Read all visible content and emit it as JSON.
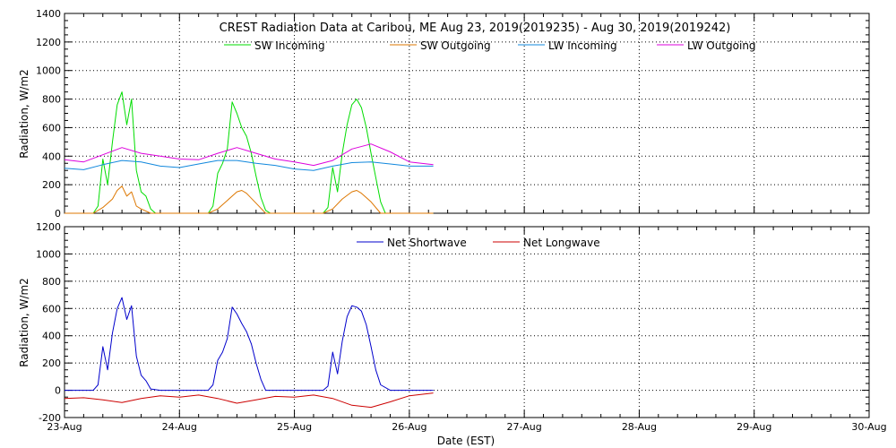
{
  "chart_data": [
    {
      "type": "line",
      "title": "CREST Radiation Data at Caribou, ME   Aug 23, 2019(2019235) - Aug 30, 2019(2019242)",
      "xlabel": "",
      "ylabel": "Radiation, W/m2",
      "ylim": [
        0,
        1400
      ],
      "yticks": [
        0,
        200,
        400,
        600,
        800,
        1000,
        1200,
        1400
      ],
      "xlim": [
        "23-Aug",
        "30-Aug"
      ],
      "grid": true,
      "legend_position": "top",
      "series": [
        {
          "name": "SW Incoming",
          "color": "#00dd00",
          "x": [
            "23-Aug 00:00",
            "23-Aug 06:00",
            "23-Aug 07:00",
            "23-Aug 08:00",
            "23-Aug 09:00",
            "23-Aug 10:00",
            "23-Aug 11:00",
            "23-Aug 12:00",
            "23-Aug 13:00",
            "23-Aug 14:00",
            "23-Aug 15:00",
            "23-Aug 16:00",
            "23-Aug 17:00",
            "23-Aug 18:00",
            "23-Aug 19:00",
            "23-Aug 20:00",
            "24-Aug 06:00",
            "24-Aug 07:00",
            "24-Aug 08:00",
            "24-Aug 09:00",
            "24-Aug 10:00",
            "24-Aug 11:00",
            "24-Aug 12:00",
            "24-Aug 13:00",
            "24-Aug 14:00",
            "24-Aug 15:00",
            "24-Aug 16:00",
            "24-Aug 17:00",
            "24-Aug 18:00",
            "24-Aug 19:00",
            "24-Aug 20:00",
            "25-Aug 06:00",
            "25-Aug 07:00",
            "25-Aug 08:00",
            "25-Aug 09:00",
            "25-Aug 10:00",
            "25-Aug 11:00",
            "25-Aug 12:00",
            "25-Aug 13:00",
            "25-Aug 14:00",
            "25-Aug 15:00",
            "25-Aug 16:00",
            "25-Aug 17:00",
            "25-Aug 18:00",
            "25-Aug 19:00",
            "25-Aug 20:00",
            "26-Aug 00:00",
            "26-Aug 05:00"
          ],
          "values": [
            0,
            0,
            50,
            380,
            200,
            500,
            760,
            850,
            620,
            800,
            300,
            150,
            120,
            30,
            0,
            0,
            0,
            50,
            280,
            350,
            450,
            780,
            700,
            600,
            540,
            420,
            260,
            110,
            20,
            0,
            0,
            0,
            40,
            320,
            150,
            420,
            620,
            760,
            800,
            740,
            600,
            420,
            250,
            80,
            0,
            0,
            0,
            0
          ]
        },
        {
          "name": "SW Outgoing",
          "color": "#dd7700",
          "x": [
            "23-Aug 00:00",
            "23-Aug 06:00",
            "23-Aug 08:00",
            "23-Aug 10:00",
            "23-Aug 11:00",
            "23-Aug 12:00",
            "23-Aug 13:00",
            "23-Aug 14:00",
            "23-Aug 15:00",
            "23-Aug 16:00",
            "23-Aug 18:00",
            "24-Aug 06:00",
            "24-Aug 08:00",
            "24-Aug 10:00",
            "24-Aug 12:00",
            "24-Aug 13:00",
            "24-Aug 14:00",
            "24-Aug 16:00",
            "24-Aug 18:00",
            "25-Aug 06:00",
            "25-Aug 08:00",
            "25-Aug 10:00",
            "25-Aug 12:00",
            "25-Aug 13:00",
            "25-Aug 14:00",
            "25-Aug 16:00",
            "25-Aug 18:00",
            "26-Aug 05:00"
          ],
          "values": [
            0,
            0,
            40,
            100,
            160,
            190,
            120,
            150,
            50,
            30,
            0,
            0,
            30,
            90,
            150,
            160,
            140,
            70,
            0,
            0,
            30,
            100,
            150,
            160,
            140,
            80,
            0,
            0
          ]
        },
        {
          "name": "LW Incoming",
          "color": "#1188dd",
          "x": [
            "23-Aug 00:00",
            "23-Aug 04:00",
            "23-Aug 08:00",
            "23-Aug 12:00",
            "23-Aug 16:00",
            "23-Aug 20:00",
            "24-Aug 00:00",
            "24-Aug 04:00",
            "24-Aug 08:00",
            "24-Aug 12:00",
            "24-Aug 16:00",
            "24-Aug 20:00",
            "25-Aug 00:00",
            "25-Aug 04:00",
            "25-Aug 08:00",
            "25-Aug 12:00",
            "25-Aug 16:00",
            "25-Aug 20:00",
            "26-Aug 00:00",
            "26-Aug 05:00"
          ],
          "values": [
            315,
            305,
            340,
            370,
            360,
            330,
            320,
            345,
            370,
            370,
            350,
            335,
            310,
            300,
            330,
            355,
            360,
            345,
            330,
            330
          ]
        },
        {
          "name": "LW Outgoing",
          "color": "#dd00dd",
          "x": [
            "23-Aug 00:00",
            "23-Aug 04:00",
            "23-Aug 08:00",
            "23-Aug 12:00",
            "23-Aug 16:00",
            "23-Aug 20:00",
            "24-Aug 00:00",
            "24-Aug 04:00",
            "24-Aug 08:00",
            "24-Aug 12:00",
            "24-Aug 16:00",
            "24-Aug 20:00",
            "25-Aug 00:00",
            "25-Aug 04:00",
            "25-Aug 08:00",
            "25-Aug 12:00",
            "25-Aug 16:00",
            "25-Aug 20:00",
            "26-Aug 00:00",
            "26-Aug 05:00"
          ],
          "values": [
            375,
            360,
            410,
            460,
            420,
            400,
            380,
            375,
            420,
            460,
            420,
            380,
            360,
            335,
            370,
            450,
            485,
            430,
            360,
            340
          ]
        }
      ]
    },
    {
      "type": "line",
      "title": "",
      "xlabel": "Date (EST)",
      "ylabel": "Radiation, W/m2",
      "ylim": [
        -200,
        1200
      ],
      "yticks": [
        -200,
        0,
        200,
        400,
        600,
        800,
        1000,
        1200
      ],
      "xlim": [
        "23-Aug",
        "30-Aug"
      ],
      "xticks": [
        "23-Aug",
        "24-Aug",
        "25-Aug",
        "26-Aug",
        "27-Aug",
        "28-Aug",
        "29-Aug",
        "30-Aug"
      ],
      "grid": true,
      "legend_position": "top",
      "series": [
        {
          "name": "Net Shortwave",
          "color": "#0000cc",
          "x": [
            "23-Aug 00:00",
            "23-Aug 06:00",
            "23-Aug 07:00",
            "23-Aug 08:00",
            "23-Aug 09:00",
            "23-Aug 10:00",
            "23-Aug 11:00",
            "23-Aug 12:00",
            "23-Aug 13:00",
            "23-Aug 14:00",
            "23-Aug 15:00",
            "23-Aug 16:00",
            "23-Aug 17:00",
            "23-Aug 18:00",
            "23-Aug 20:00",
            "24-Aug 06:00",
            "24-Aug 07:00",
            "24-Aug 08:00",
            "24-Aug 09:00",
            "24-Aug 10:00",
            "24-Aug 11:00",
            "24-Aug 12:00",
            "24-Aug 13:00",
            "24-Aug 14:00",
            "24-Aug 15:00",
            "24-Aug 16:00",
            "24-Aug 17:00",
            "24-Aug 18:00",
            "24-Aug 20:00",
            "25-Aug 06:00",
            "25-Aug 07:00",
            "25-Aug 08:00",
            "25-Aug 09:00",
            "25-Aug 10:00",
            "25-Aug 11:00",
            "25-Aug 12:00",
            "25-Aug 13:00",
            "25-Aug 14:00",
            "25-Aug 15:00",
            "25-Aug 16:00",
            "25-Aug 17:00",
            "25-Aug 18:00",
            "25-Aug 20:00",
            "26-Aug 05:00"
          ],
          "values": [
            0,
            0,
            40,
            320,
            150,
            420,
            600,
            680,
            520,
            620,
            250,
            110,
            70,
            10,
            0,
            0,
            40,
            220,
            280,
            380,
            610,
            560,
            490,
            430,
            340,
            200,
            80,
            0,
            0,
            0,
            30,
            280,
            120,
            360,
            540,
            620,
            610,
            580,
            480,
            320,
            150,
            40,
            0,
            0
          ]
        },
        {
          "name": "Net Longwave",
          "color": "#cc0000",
          "x": [
            "23-Aug 00:00",
            "23-Aug 04:00",
            "23-Aug 08:00",
            "23-Aug 12:00",
            "23-Aug 16:00",
            "23-Aug 20:00",
            "24-Aug 00:00",
            "24-Aug 04:00",
            "24-Aug 08:00",
            "24-Aug 12:00",
            "24-Aug 16:00",
            "24-Aug 20:00",
            "25-Aug 00:00",
            "25-Aug 04:00",
            "25-Aug 08:00",
            "25-Aug 12:00",
            "25-Aug 16:00",
            "25-Aug 20:00",
            "26-Aug 00:00",
            "26-Aug 05:00"
          ],
          "values": [
            -60,
            -55,
            -70,
            -90,
            -60,
            -40,
            -50,
            -35,
            -60,
            -95,
            -70,
            -45,
            -50,
            -35,
            -60,
            -110,
            -125,
            -85,
            -40,
            -20
          ]
        }
      ]
    }
  ]
}
